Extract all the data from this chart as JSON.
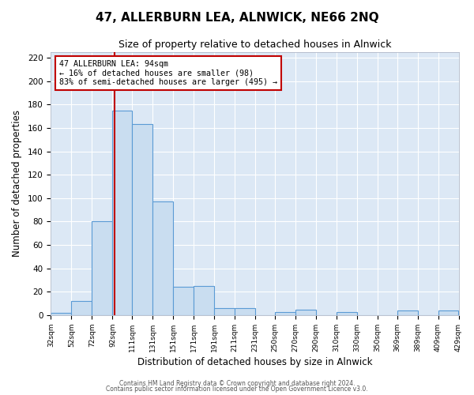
{
  "title": "47, ALLERBURN LEA, ALNWICK, NE66 2NQ",
  "subtitle": "Size of property relative to detached houses in Alnwick",
  "xlabel": "Distribution of detached houses by size in Alnwick",
  "ylabel": "Number of detached properties",
  "bar_edges": [
    32,
    52,
    72,
    92,
    111,
    131,
    151,
    171,
    191,
    211,
    231,
    250,
    270,
    290,
    310,
    330,
    350,
    369,
    389,
    409,
    429
  ],
  "bar_heights": [
    2,
    12,
    80,
    175,
    163,
    97,
    24,
    25,
    6,
    6,
    0,
    3,
    5,
    0,
    3,
    0,
    0,
    4,
    0,
    4
  ],
  "bar_color": "#c9ddf0",
  "bar_edge_color": "#5b9bd5",
  "property_line_x": 94,
  "property_line_color": "#c00000",
  "ylim": [
    0,
    225
  ],
  "yticks": [
    0,
    20,
    40,
    60,
    80,
    100,
    120,
    140,
    160,
    180,
    200,
    220
  ],
  "tick_labels": [
    "32sqm",
    "52sqm",
    "72sqm",
    "92sqm",
    "111sqm",
    "131sqm",
    "151sqm",
    "171sqm",
    "191sqm",
    "211sqm",
    "231sqm",
    "250sqm",
    "270sqm",
    "290sqm",
    "310sqm",
    "330sqm",
    "350sqm",
    "369sqm",
    "389sqm",
    "409sqm",
    "429sqm"
  ],
  "annotation_line1": "47 ALLERBURN LEA: 94sqm",
  "annotation_line2": "← 16% of detached houses are smaller (98)",
  "annotation_line3": "83% of semi-detached houses are larger (495) →",
  "annotation_box_color": "#ffffff",
  "annotation_box_edge_color": "#c00000",
  "footer1": "Contains HM Land Registry data © Crown copyright and database right 2024.",
  "footer2": "Contains public sector information licensed under the Open Government Licence v3.0.",
  "figure_bg_color": "#ffffff",
  "plot_bg_color": "#dce8f5",
  "title_area_bg": "#e8f0f8"
}
